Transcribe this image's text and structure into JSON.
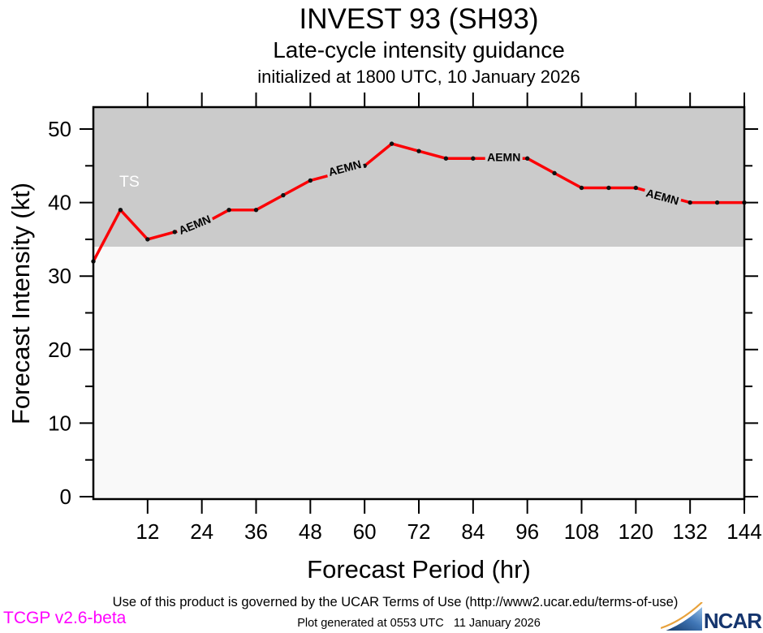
{
  "chart_data": {
    "type": "line",
    "title": "INVEST 93 (SH93)",
    "subtitle": "Late-cycle intensity guidance",
    "initialized": "initialized at 1800 UTC, 10 January 2026",
    "xlabel": "Forecast Period (hr)",
    "ylabel": "Forecast Intensity (kt)",
    "x": [
      0,
      6,
      12,
      18,
      24,
      30,
      36,
      42,
      48,
      54,
      60,
      66,
      72,
      78,
      84,
      90,
      96,
      102,
      108,
      114,
      120,
      126,
      132,
      138,
      144
    ],
    "series": [
      {
        "name": "AEMN",
        "color": "#fb0006",
        "values": [
          32,
          39,
          35,
          36,
          37,
          39,
          39,
          41,
          43,
          44,
          45,
          48,
          47,
          46,
          46,
          46,
          46,
          44,
          42,
          42,
          42,
          41,
          40,
          40,
          40
        ]
      }
    ],
    "x_ticks": [
      12,
      24,
      36,
      48,
      60,
      72,
      84,
      96,
      108,
      120,
      132,
      144
    ],
    "y_ticks": [
      0,
      10,
      20,
      30,
      40,
      50
    ],
    "y_minor_ticks": [
      5,
      15,
      25,
      35,
      45
    ],
    "xlim": [
      0,
      144
    ],
    "ylim": [
      0,
      53
    ],
    "grid": false,
    "legend": "none",
    "plot_bg": "#f9f9f9",
    "threshold": {
      "label": "TS",
      "value": 34,
      "zone_color": "#cbcbcb",
      "label_color": "#ffffff"
    },
    "marker_color": "#111111",
    "model_labels": [
      {
        "text": "AEMN",
        "hour": 22.4,
        "value": 37.0,
        "angle": -22
      },
      {
        "text": "AEMN",
        "hour": 55.6,
        "value": 44.7,
        "angle": -15
      },
      {
        "text": "AEMN",
        "hour": 90.8,
        "value": 46.2,
        "angle": 0
      },
      {
        "text": "AEMN",
        "hour": 125.9,
        "value": 40.8,
        "angle": 15
      }
    ]
  },
  "footer": {
    "terms": "Use of this product is governed by the UCAR Terms of Use (http://www2.ucar.edu/terms-of-use)",
    "generated": "Plot generated at 0553 UTC   11 January 2026",
    "version": "TCGP v2.6-beta",
    "version_color": "#ff00ff",
    "ncar": "NCAR"
  }
}
